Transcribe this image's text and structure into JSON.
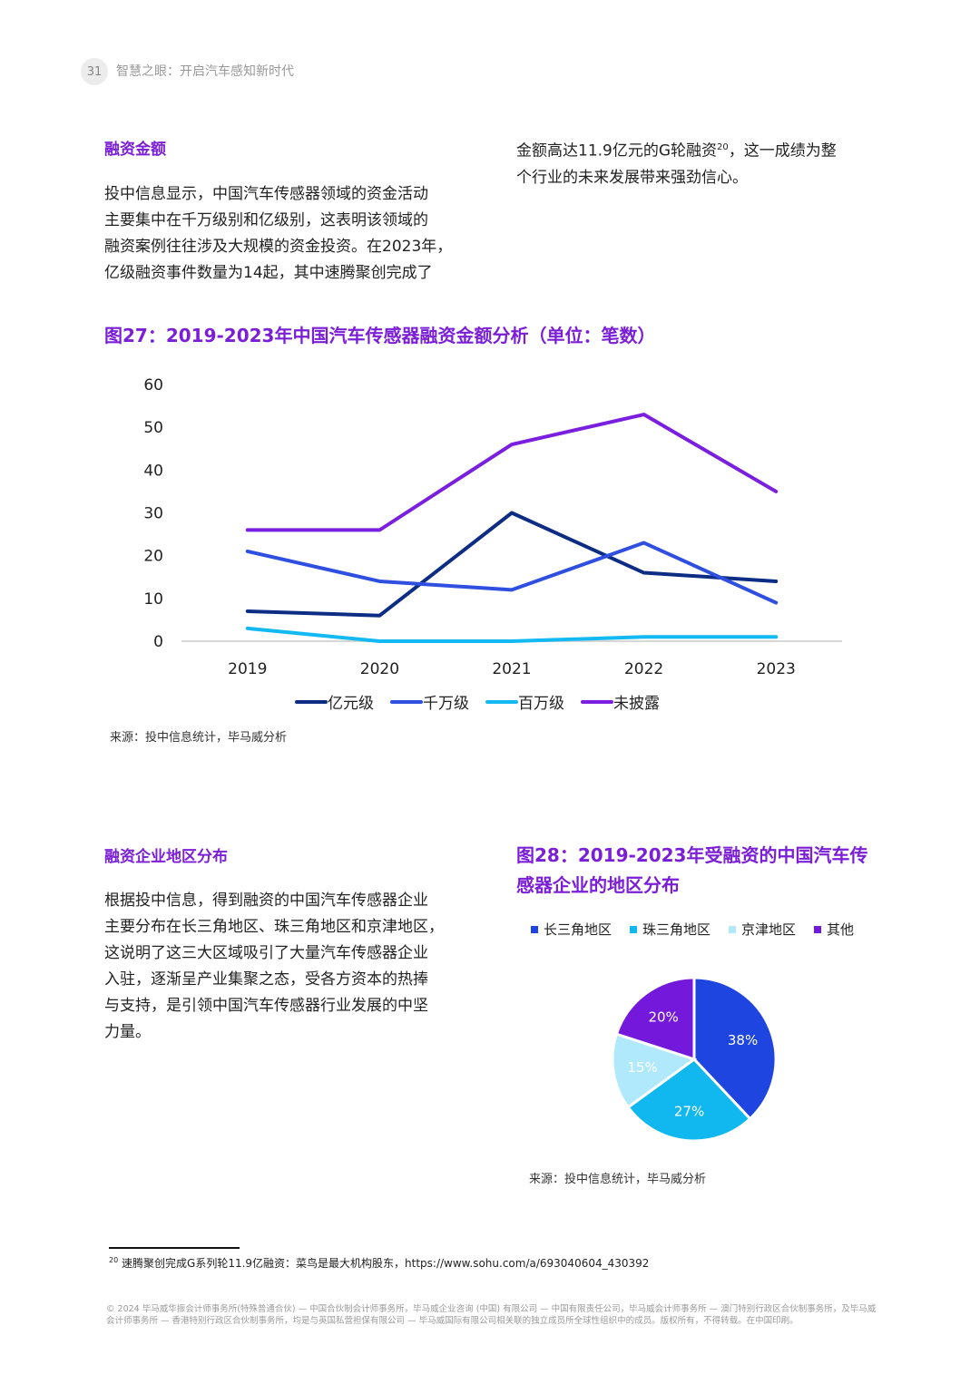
{
  "header": {
    "page_number": "31",
    "title": "智慧之眼：开启汽车感知新时代"
  },
  "section1": {
    "heading": "融资金额",
    "para_left_lines": [
      "投中信息显示，中国汽车传感器领域的资金活动",
      "主要集中在千万级别和亿级别，这表明该领域的",
      "融资案例往往涉及大规模的资金投资。在2023年，",
      "亿级融资事件数量为14起，其中速腾聚创完成了"
    ],
    "para_right_line1_text": "金额高达11.9亿元的G轮融资",
    "para_right_line1_sup": "20",
    "para_right_line1_end": "，这一成绩为整",
    "para_right_line2": "个行业的未来发展带来强劲信心。"
  },
  "figure27": {
    "title": "图27：2019-2023年中国汽车传感器融资金额分析（单位：笔数）",
    "source": "来源：投中信息统计，毕马威分析"
  },
  "section2": {
    "heading": "融资企业地区分布",
    "para_lines": [
      "根据投中信息，得到融资的中国汽车传感器企业",
      "主要分布在长三角地区、珠三角地区和京津地区，",
      "这说明了这三大区域吸引了大量汽车传感器企业",
      "入驻，逐渐呈产业集聚之态，受各方资本的热捧",
      "与支持，是引领中国汽车传感器行业发展的中坚",
      "力量。"
    ]
  },
  "figure28": {
    "title_line1": "图28：2019-2023年受融资的中国汽车传",
    "title_line2": "感器企业的地区分布",
    "source": "来源：投中信息统计，毕马威分析"
  },
  "footnote": {
    "mark": "20",
    "text": "速腾聚创完成G系列轮11.9亿融资：菜鸟是最大机构股东，https://www.sohu.com/a/693040604_430392"
  },
  "copyright": "© 2024 毕马威华振会计师事务所(特殊普通合伙) — 中国合伙制会计师事务所，毕马威企业咨询 (中国) 有限公司 — 中国有限责任公司，毕马威会计师事务所 — 澳门特别行政区合伙制事务所，及毕马威会计师事务所 — 香港特别行政区合伙制事务所，均是与英国私营担保有限公司 — 毕马威国际有限公司相关联的独立成员所全球性组织中的成员。版权所有，不得转载。在中国印刷。",
  "chart_data": [
    {
      "type": "line",
      "categories": [
        "2019",
        "2020",
        "2021",
        "2022",
        "2023"
      ],
      "ylim": [
        0,
        60
      ],
      "yticks": [
        0,
        10,
        20,
        30,
        40,
        50,
        60
      ],
      "grid": false,
      "legend_position": "bottom",
      "series": [
        {
          "name": "亿元级",
          "color": "#0c2d83",
          "values": [
            7,
            6,
            30,
            16,
            14
          ]
        },
        {
          "name": "千万级",
          "color": "#2e4fe0",
          "values": [
            21,
            14,
            12,
            23,
            9
          ]
        },
        {
          "name": "百万级",
          "color": "#13b9f2",
          "values": [
            3,
            0,
            0,
            1,
            1
          ]
        },
        {
          "name": "未披露",
          "color": "#7a1ee0",
          "values": [
            26,
            26,
            46,
            53,
            35
          ]
        }
      ]
    },
    {
      "type": "pie",
      "legend_position": "top",
      "labels": [
        "长三角地区",
        "珠三角地区",
        "京津地区",
        "其他"
      ],
      "values": [
        38,
        27,
        15,
        20
      ],
      "value_labels": [
        "38%",
        "27%",
        "15%",
        "20%"
      ],
      "colors": [
        "#1f45e0",
        "#11b8f0",
        "#b0e9fb",
        "#7419dc"
      ],
      "label_colors": [
        "#ffffff",
        "#ffffff",
        "#ffffff",
        "#ffffff"
      ]
    }
  ]
}
